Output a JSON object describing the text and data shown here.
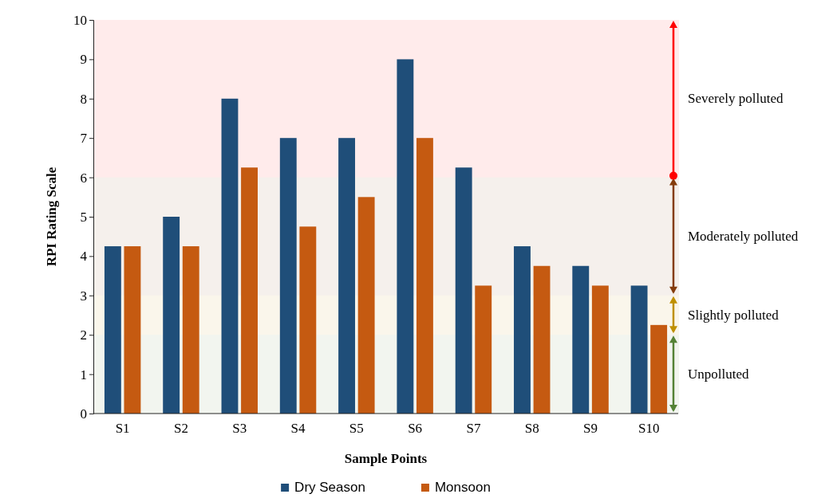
{
  "chart_data": {
    "type": "bar",
    "xlabel": "Sample Points",
    "ylabel": "RPI Rating Scale",
    "categories": [
      "S1",
      "S2",
      "S3",
      "S4",
      "S5",
      "S6",
      "S7",
      "S8",
      "S9",
      "S10"
    ],
    "series": [
      {
        "name": "Dry Season",
        "color": "#1f4e79",
        "values": [
          4.25,
          5,
          8,
          7,
          7,
          9,
          6.25,
          4.25,
          3.75,
          3.25
        ]
      },
      {
        "name": "Monsoon",
        "color": "#c55a11",
        "values": [
          4.25,
          4.25,
          6.25,
          4.75,
          5.5,
          7,
          3.25,
          3.75,
          3.25,
          2.25
        ]
      }
    ],
    "ylim": [
      0,
      10
    ],
    "yticks": [
      0,
      1,
      2,
      3,
      4,
      5,
      6,
      7,
      8,
      9,
      10
    ],
    "grid": false,
    "legend": "bottom",
    "bands": [
      {
        "axis": "y",
        "from": 0,
        "to": 2,
        "label": "Unpolluted",
        "color": "#548235"
      },
      {
        "axis": "y",
        "from": 2,
        "to": 3,
        "label": "Slightly polluted",
        "color": "#bf9000"
      },
      {
        "axis": "y",
        "from": 3,
        "to": 6,
        "label": "Moderately polluted",
        "color": "#843c0c"
      },
      {
        "axis": "y",
        "from": 6,
        "to": 10,
        "label": "Severely polluted",
        "color": "#ff0000"
      }
    ]
  }
}
